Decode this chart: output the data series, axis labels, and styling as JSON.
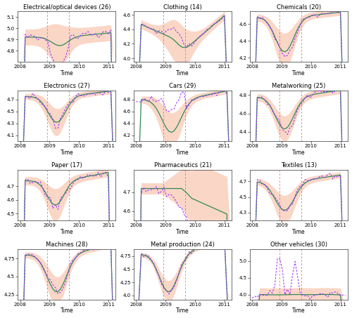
{
  "panels": [
    {
      "title": "Electrical/optical devices (26)",
      "row": 0,
      "col": 0,
      "ylim": [
        4.7,
        5.15
      ],
      "yticks": [
        4.8,
        4.9,
        5.0,
        5.1
      ],
      "pred_start": 2008.92,
      "pred_end": 2009.67
    },
    {
      "title": "Clothing (14)",
      "row": 0,
      "col": 1,
      "ylim": [
        3.95,
        4.65
      ],
      "yticks": [
        4.0,
        4.2,
        4.4,
        4.6
      ],
      "pred_start": 2008.92,
      "pred_end": 2009.67
    },
    {
      "title": "Chemicals (20)",
      "row": 0,
      "col": 2,
      "ylim": [
        4.15,
        4.75
      ],
      "yticks": [
        4.2,
        4.4,
        4.6
      ],
      "pred_start": 2008.92,
      "pred_end": 2009.67
    },
    {
      "title": "Electronics (27)",
      "row": 1,
      "col": 0,
      "ylim": [
        4.0,
        4.85
      ],
      "yticks": [
        4.1,
        4.3,
        4.5,
        4.7
      ],
      "pred_start": 2008.92,
      "pred_end": 2009.67
    },
    {
      "title": "Cars (29)",
      "row": 1,
      "col": 1,
      "ylim": [
        4.1,
        4.95
      ],
      "yticks": [
        4.2,
        4.4,
        4.6,
        4.8
      ],
      "pred_start": 2008.92,
      "pred_end": 2009.67
    },
    {
      "title": "Metalworking (25)",
      "row": 1,
      "col": 2,
      "ylim": [
        4.3,
        4.85
      ],
      "yticks": [
        4.4,
        4.6,
        4.8
      ],
      "pred_start": 2008.92,
      "pred_end": 2009.67
    },
    {
      "title": "Paper (17)",
      "row": 2,
      "col": 0,
      "ylim": [
        4.45,
        4.82
      ],
      "yticks": [
        4.5,
        4.6,
        4.7
      ],
      "pred_start": 2008.92,
      "pred_end": 2009.67
    },
    {
      "title": "Pharmaceutics (21)",
      "row": 2,
      "col": 1,
      "ylim": [
        4.55,
        4.82
      ],
      "yticks": [
        4.6,
        4.7
      ],
      "pred_start": 2008.92,
      "pred_end": 2009.67
    },
    {
      "title": "Textiles (13)",
      "row": 2,
      "col": 2,
      "ylim": [
        4.2,
        4.85
      ],
      "yticks": [
        4.3,
        4.5,
        4.7
      ],
      "pred_start": 2008.92,
      "pred_end": 2009.67
    },
    {
      "title": "Machines (28)",
      "row": 3,
      "col": 0,
      "ylim": [
        4.18,
        4.88
      ],
      "yticks": [
        4.25,
        4.5,
        4.75
      ],
      "pred_start": 2008.92,
      "pred_end": 2009.67
    },
    {
      "title": "Metal production (24)",
      "row": 3,
      "col": 1,
      "ylim": [
        3.92,
        4.88
      ],
      "yticks": [
        4.0,
        4.25,
        4.5,
        4.75
      ],
      "pred_start": 2008.92,
      "pred_end": 2009.67
    },
    {
      "title": "Other vehicles (30)",
      "row": 3,
      "col": 2,
      "ylim": [
        3.85,
        5.35
      ],
      "yticks": [
        4.0,
        4.5,
        5.0
      ],
      "pred_start": 2008.92,
      "pred_end": 2009.67
    }
  ],
  "xlim": [
    2007.92,
    2011.25
  ],
  "xticks": [
    2008,
    2009,
    2010,
    2011
  ],
  "xticklabels": [
    "2008",
    "2009",
    "2010",
    "2011"
  ],
  "color_observed": "#9B30FF",
  "color_counterfactual": "#2E8B57",
  "color_ci": "#F4A582",
  "color_vline": "#CD5C5C",
  "alpha_ci": 0.45,
  "figsize": [
    5.0,
    4.53
  ],
  "dpi": 100,
  "background": "#FFFFFF",
  "xlabel": "Time"
}
